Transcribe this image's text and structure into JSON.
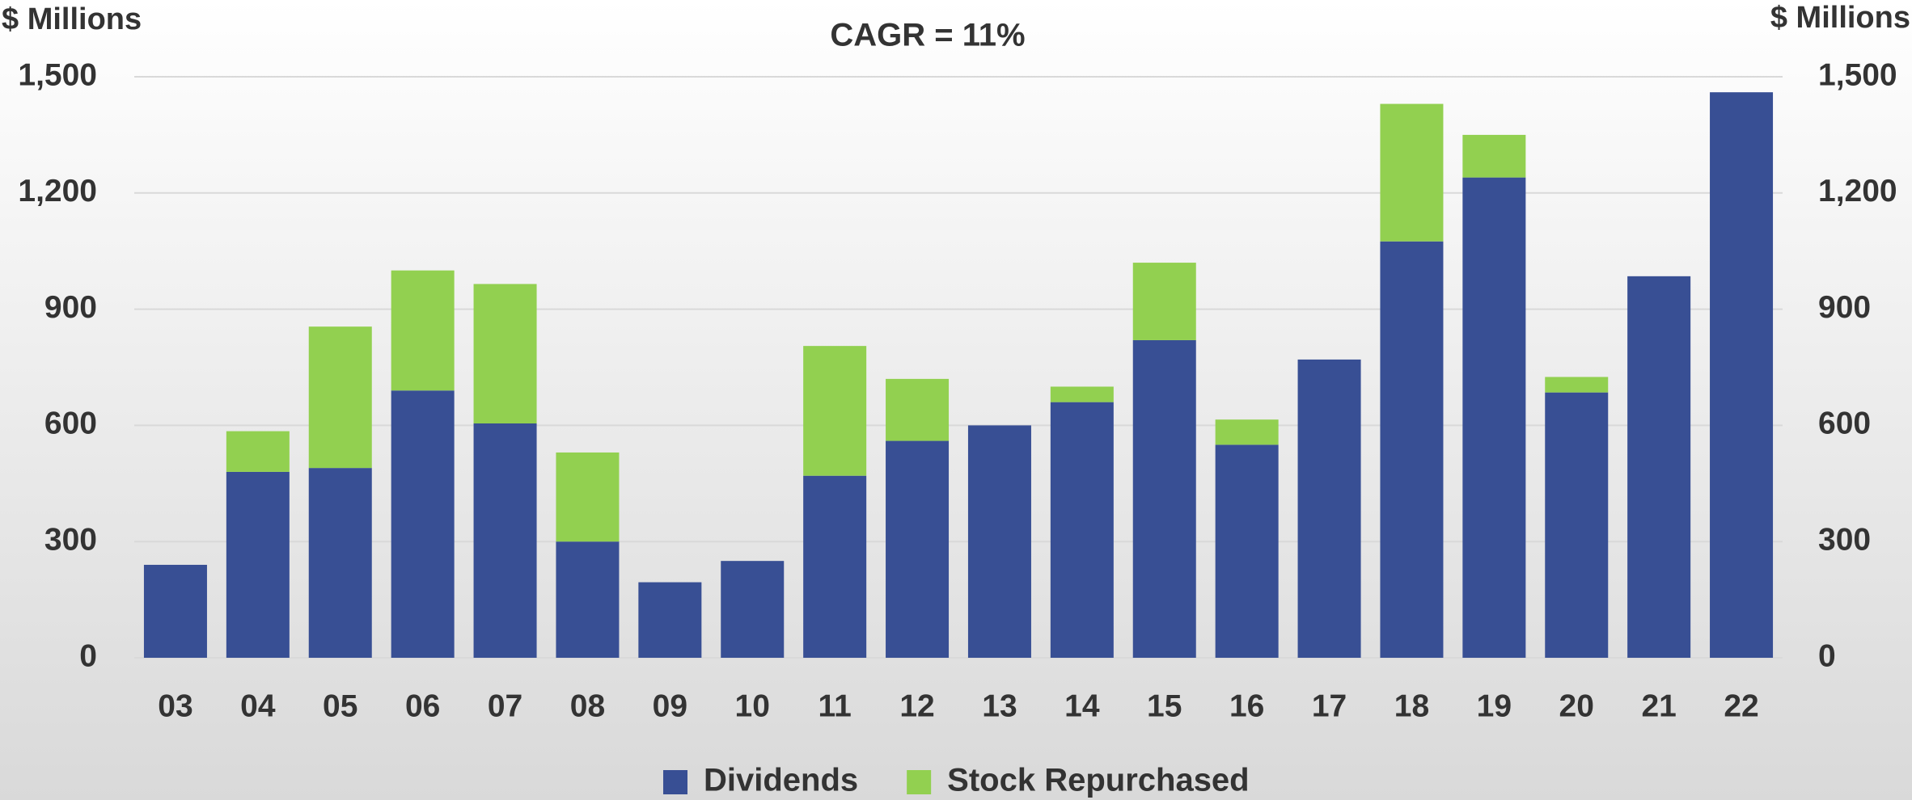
{
  "chart_data": {
    "type": "stacked_bar",
    "title": "CAGR = 11%",
    "y_label": "$ Millions",
    "y2_label": "$ Millions",
    "categories": [
      "03",
      "04",
      "05",
      "06",
      "07",
      "08",
      "09",
      "10",
      "11",
      "12",
      "13",
      "14",
      "15",
      "16",
      "17",
      "18",
      "19",
      "20",
      "21",
      "22"
    ],
    "series": [
      {
        "name": "Dividends",
        "color": "#384f94",
        "values": [
          240,
          480,
          490,
          690,
          605,
          300,
          195,
          250,
          470,
          560,
          600,
          660,
          820,
          550,
          770,
          1075,
          1240,
          685,
          985,
          1460
        ]
      },
      {
        "name": "Stock Repurchased",
        "color": "#92d050",
        "values": [
          0,
          105,
          365,
          310,
          360,
          230,
          0,
          0,
          335,
          160,
          0,
          40,
          200,
          65,
          0,
          355,
          110,
          40,
          0,
          0
        ]
      }
    ],
    "ylim": [
      0,
      1500
    ],
    "yticks": [
      0,
      300,
      600,
      900,
      {
        "value": 1200,
        "label": "1,200"
      },
      {
        "value": 1500,
        "label": "1,500"
      }
    ],
    "grid": true,
    "legend": "bottom"
  }
}
